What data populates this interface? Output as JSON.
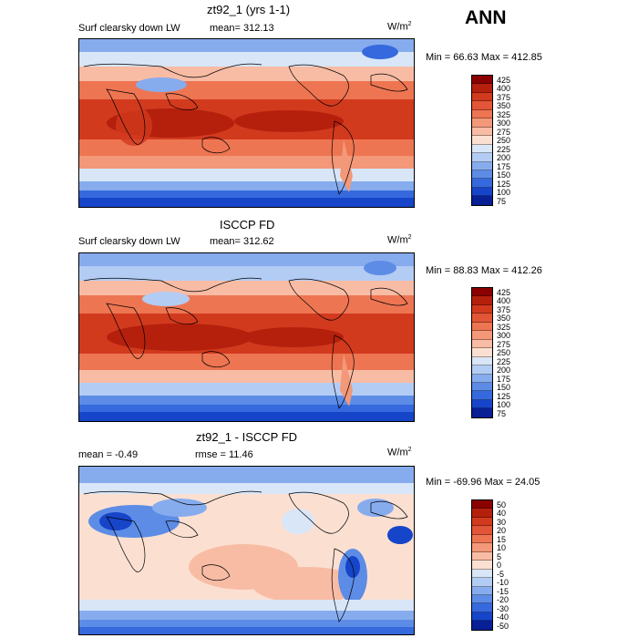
{
  "season": "ANN",
  "panels": [
    {
      "title": "zt92_1 (yrs 1-1)",
      "left_label": "Surf clearsky down LW",
      "center_label": "mean= 312.13",
      "units": "W/m",
      "units_sup": "2",
      "minmax": "Min =  66.63 Max = 412.85",
      "colorbar_levels": [
        "425",
        "400",
        "375",
        "350",
        "325",
        "300",
        "275",
        "250",
        "225",
        "200",
        "175",
        "150",
        "125",
        "100",
        "75"
      ],
      "colors": [
        "#8b0000",
        "#b5200d",
        "#d23a1e",
        "#e25536",
        "#ee7552",
        "#f39878",
        "#f8bca4",
        "#fbe0d2",
        "#d8e6f8",
        "#b3ccf4",
        "#87acee",
        "#5d8ce6",
        "#3569dd",
        "#1645c9",
        "#081f96"
      ]
    },
    {
      "title": "ISCCP FD",
      "left_label": "Surf clearsky down LW",
      "center_label": "mean= 312.62",
      "units": "W/m",
      "units_sup": "2",
      "minmax": "Min =  88.83 Max = 412.26",
      "colorbar_levels": [
        "425",
        "400",
        "375",
        "350",
        "325",
        "300",
        "275",
        "250",
        "225",
        "200",
        "175",
        "150",
        "125",
        "100",
        "75"
      ],
      "colors": [
        "#8b0000",
        "#b5200d",
        "#d23a1e",
        "#e25536",
        "#ee7552",
        "#f39878",
        "#f8bca4",
        "#fbe0d2",
        "#d8e6f8",
        "#b3ccf4",
        "#87acee",
        "#5d8ce6",
        "#3569dd",
        "#1645c9",
        "#081f96"
      ]
    },
    {
      "title": "zt92_1 - ISCCP FD",
      "left_label": "mean =   -0.49",
      "center_label": "rmse =   11.46",
      "units": "W/m",
      "units_sup": "2",
      "minmax": "Min = -69.96 Max =   24.05",
      "colorbar_levels": [
        "50",
        "40",
        "30",
        "20",
        "15",
        "10",
        "5",
        "0",
        "-5",
        "-10",
        "-15",
        "-20",
        "-30",
        "-40",
        "-50"
      ],
      "colors": [
        "#8b0000",
        "#b5200d",
        "#d23a1e",
        "#e25536",
        "#ee7552",
        "#f39878",
        "#f8bca4",
        "#fbe0d2",
        "#d8e6f8",
        "#b3ccf4",
        "#87acee",
        "#5d8ce6",
        "#3569dd",
        "#1645c9",
        "#081f96"
      ]
    }
  ]
}
